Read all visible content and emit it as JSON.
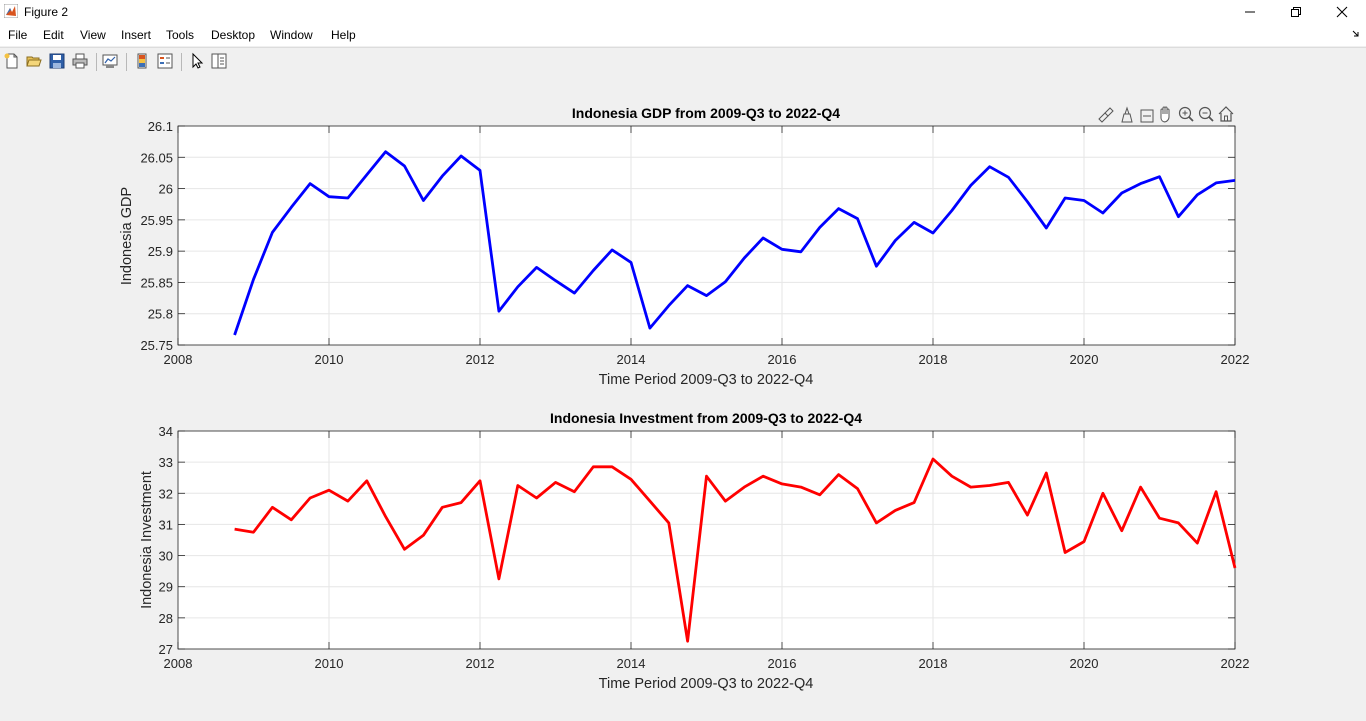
{
  "window": {
    "title": "Figure 2"
  },
  "menu": {
    "items": [
      "File",
      "Edit",
      "View",
      "Insert",
      "Tools",
      "Desktop",
      "Window",
      "Help"
    ]
  },
  "toolbar": {
    "icons": [
      "new-figure-icon",
      "open-file-icon",
      "save-icon",
      "print-icon",
      "link-plot-icon",
      "insert-colorbar-icon",
      "insert-legend-icon",
      "edit-plot-icon",
      "property-inspector-icon"
    ]
  },
  "axes_toolbar": {
    "icons": [
      "brush-icon",
      "data-tips-icon",
      "rotate-icon",
      "pan-icon",
      "zoom-in-icon",
      "zoom-out-icon",
      "home-icon"
    ]
  },
  "colors": {
    "gdp_line": "#0000ff",
    "investment_line": "#ff0000",
    "figure_background": "#f0f0f0",
    "axes_background": "#ffffff",
    "grid": "#e6e6e6"
  },
  "chart_data": [
    {
      "type": "line",
      "title": "Indonesia GDP from 2009-Q3 to 2022-Q4",
      "xlabel": "Time Period 2009-Q3 to 2022-Q4",
      "ylabel": "Indonesia GDP",
      "xlim": [
        2008,
        2022
      ],
      "ylim": [
        25.75,
        26.1
      ],
      "xticks": [
        "2008",
        "2010",
        "2012",
        "2014",
        "2016",
        "2018",
        "2020",
        "2022"
      ],
      "yticks": [
        "25.75",
        "25.8",
        "25.85",
        "25.9",
        "25.95",
        "26",
        "26.05",
        "26.1"
      ],
      "grid": true,
      "series": [
        {
          "color": "#0000ff",
          "x": [
            2008.75,
            2009.0,
            2009.25,
            2009.5,
            2009.75,
            2010.0,
            2010.25,
            2010.5,
            2010.75,
            2011.0,
            2011.25,
            2011.5,
            2011.75,
            2012.0,
            2012.25,
            2012.5,
            2012.75,
            2013.0,
            2013.25,
            2013.5,
            2013.75,
            2014.0,
            2014.25,
            2014.5,
            2014.75,
            2015.0,
            2015.25,
            2015.5,
            2015.75,
            2016.0,
            2016.25,
            2016.5,
            2016.75,
            2017.0,
            2017.25,
            2017.5,
            2017.75,
            2018.0,
            2018.25,
            2018.5,
            2018.75,
            2019.0,
            2019.25,
            2019.5,
            2019.75,
            2020.0,
            2020.25,
            2020.5,
            2020.75,
            2021.0,
            2021.25,
            2021.5,
            2021.75,
            2022.0
          ],
          "y": [
            25.766,
            25.855,
            25.93,
            25.97,
            26.008,
            25.987,
            25.985,
            26.022,
            26.059,
            26.036,
            25.981,
            26.02,
            26.052,
            26.029,
            25.804,
            25.843,
            25.874,
            25.853,
            25.833,
            25.869,
            25.902,
            25.882,
            25.777,
            25.813,
            25.845,
            25.829,
            25.851,
            25.889,
            25.921,
            25.903,
            25.899,
            25.938,
            25.968,
            25.952,
            25.876,
            25.917,
            25.946,
            25.929,
            25.965,
            26.005,
            26.035,
            26.018,
            25.979,
            25.937,
            25.985,
            25.981,
            25.961,
            25.993,
            26.008,
            26.019,
            25.955,
            25.99,
            26.009,
            26.013
          ]
        }
      ]
    },
    {
      "type": "line",
      "title": "Indonesia Investment from 2009-Q3 to 2022-Q4",
      "xlabel": "Time Period 2009-Q3 to 2022-Q4",
      "ylabel": "Indonesia Investment",
      "xlim": [
        2008,
        2022
      ],
      "ylim": [
        27,
        34
      ],
      "xticks": [
        "2008",
        "2010",
        "2012",
        "2014",
        "2016",
        "2018",
        "2020",
        "2022"
      ],
      "yticks": [
        "27",
        "28",
        "29",
        "30",
        "31",
        "32",
        "33",
        "34"
      ],
      "grid": true,
      "series": [
        {
          "color": "#ff0000",
          "x": [
            2008.75,
            2009.0,
            2009.25,
            2009.5,
            2009.75,
            2010.0,
            2010.25,
            2010.5,
            2010.75,
            2011.0,
            2011.25,
            2011.5,
            2011.75,
            2012.0,
            2012.25,
            2012.5,
            2012.75,
            2013.0,
            2013.25,
            2013.5,
            2013.75,
            2014.0,
            2014.25,
            2014.5,
            2014.75,
            2015.0,
            2015.25,
            2015.5,
            2015.75,
            2016.0,
            2016.25,
            2016.5,
            2016.75,
            2017.0,
            2017.25,
            2017.5,
            2017.75,
            2018.0,
            2018.25,
            2018.5,
            2018.75,
            2019.0,
            2019.25,
            2019.5,
            2019.75,
            2020.0,
            2020.25,
            2020.5,
            2020.75,
            2021.0,
            2021.25,
            2021.5,
            2021.75,
            2022.0
          ],
          "y": [
            30.85,
            30.75,
            31.55,
            31.15,
            31.85,
            32.1,
            31.75,
            32.4,
            31.25,
            30.2,
            30.65,
            31.55,
            31.7,
            32.4,
            29.25,
            32.25,
            31.85,
            32.35,
            32.05,
            32.85,
            32.85,
            32.45,
            31.75,
            31.05,
            27.25,
            32.55,
            31.75,
            32.2,
            32.55,
            32.3,
            32.2,
            31.95,
            32.6,
            32.15,
            31.05,
            31.45,
            31.7,
            33.1,
            32.55,
            32.2,
            32.25,
            32.35,
            31.3,
            32.65,
            30.1,
            30.45,
            32.0,
            30.8,
            32.2,
            31.2,
            31.05,
            30.4,
            32.05,
            29.6
          ]
        }
      ]
    }
  ]
}
